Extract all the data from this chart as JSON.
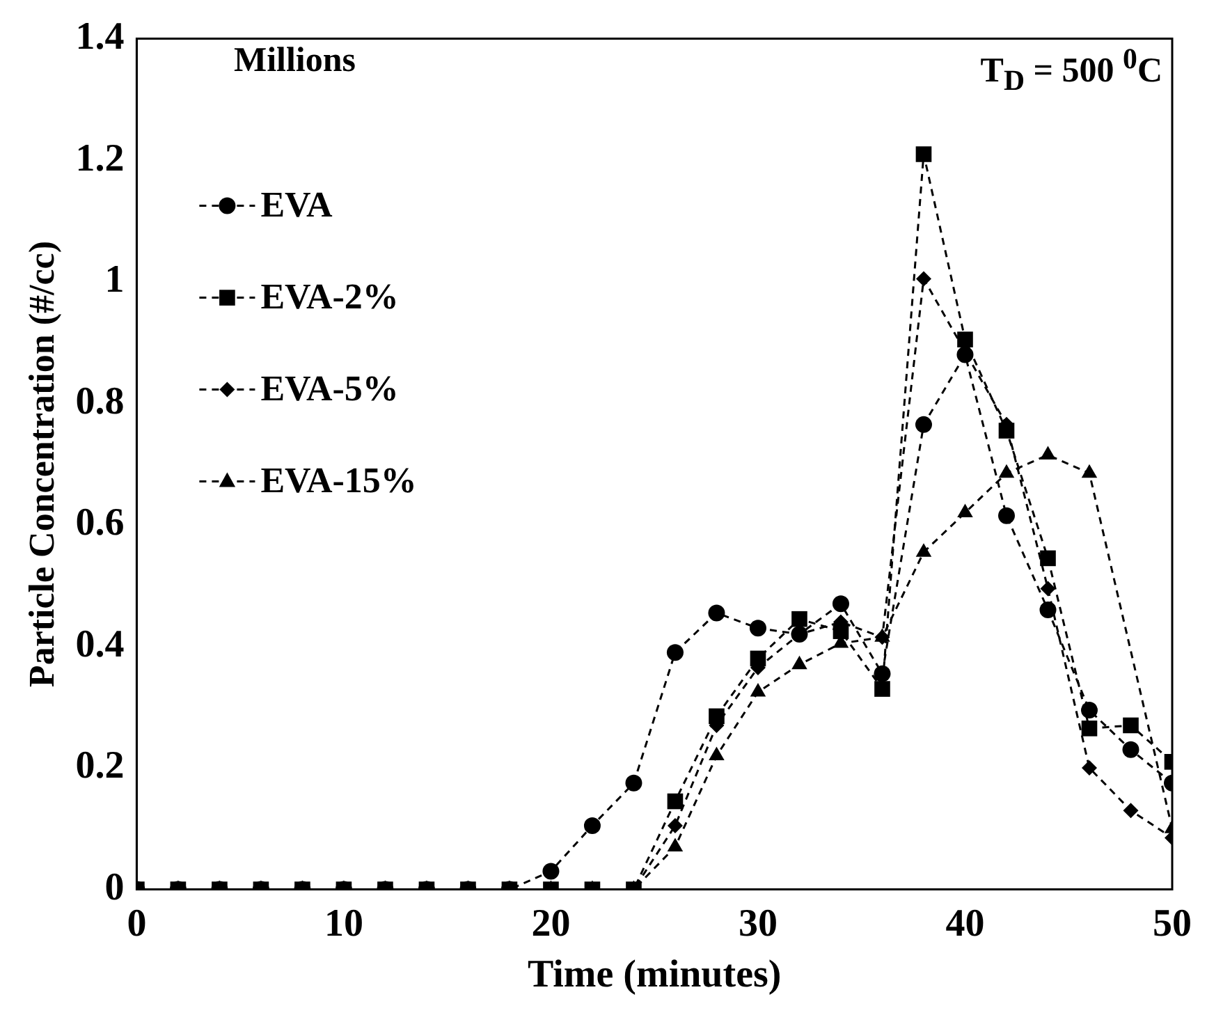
{
  "chart_data": {
    "type": "line",
    "xlabel": "Time (minutes)",
    "ylabel": "Particle Concentration (#/cc)",
    "annotations": [
      "Millions",
      "T$_{D}$ = 500 $^{0}$C"
    ],
    "xlim": [
      0,
      50
    ],
    "xticks": [
      0,
      10,
      20,
      30,
      40,
      50
    ],
    "ylim": [
      0,
      1.4
    ],
    "yticks": [
      0,
      0.2,
      0.4,
      0.6,
      0.8,
      1,
      1.2,
      1.4
    ],
    "grid": false,
    "legend": "top left",
    "line_style": "dashed",
    "series": [
      {
        "name": "EVA",
        "color": "#000000",
        "marker": "circle",
        "x": [
          0,
          2,
          4,
          6,
          8,
          10,
          12,
          14,
          16,
          18,
          20,
          22,
          24,
          26,
          28,
          30,
          32,
          34,
          36,
          38,
          40,
          42,
          44,
          46,
          48,
          50
        ],
        "values": [
          0,
          0,
          0,
          0,
          0,
          0,
          0,
          0,
          0,
          0,
          0.03,
          0.105,
          0.175,
          0.39,
          0.455,
          0.43,
          0.42,
          0.47,
          0.355,
          0.765,
          0.88,
          0.615,
          0.46,
          0.295,
          0.23,
          0.175
        ]
      },
      {
        "name": "EVA-2%",
        "color": "#000000",
        "marker": "square",
        "x": [
          0,
          2,
          4,
          6,
          8,
          10,
          12,
          14,
          16,
          18,
          20,
          22,
          24,
          26,
          28,
          30,
          32,
          34,
          36,
          38,
          40,
          42,
          44,
          46,
          48,
          50
        ],
        "values": [
          0,
          0,
          0,
          0,
          0,
          0,
          0,
          0,
          0,
          0,
          0,
          0,
          0,
          0.145,
          0.285,
          0.38,
          0.445,
          0.425,
          0.33,
          1.21,
          0.905,
          0.755,
          0.545,
          0.265,
          0.27,
          0.21
        ]
      },
      {
        "name": "EVA-5%",
        "color": "#000000",
        "marker": "diamond",
        "x": [
          0,
          2,
          4,
          6,
          8,
          10,
          12,
          14,
          16,
          18,
          20,
          22,
          24,
          26,
          28,
          30,
          32,
          34,
          36,
          38,
          40,
          42,
          44,
          46,
          48,
          50
        ],
        "values": [
          0,
          0,
          0,
          0,
          0,
          0,
          0,
          0,
          0,
          0,
          0,
          0,
          0,
          0.105,
          0.27,
          0.365,
          0.42,
          0.44,
          0.415,
          1.005,
          0.885,
          0.765,
          0.495,
          0.2,
          0.13,
          0.085
        ]
      },
      {
        "name": "EVA-15%",
        "color": "#000000",
        "marker": "triangle",
        "x": [
          0,
          2,
          4,
          6,
          8,
          10,
          12,
          14,
          16,
          18,
          20,
          22,
          24,
          26,
          28,
          30,
          32,
          34,
          36,
          38,
          40,
          42,
          44,
          46,
          50
        ],
        "values": [
          0,
          0,
          0,
          0,
          0,
          0,
          0,
          0,
          0,
          0,
          0,
          0,
          0,
          0.07,
          0.22,
          0.325,
          0.37,
          0.405,
          0.415,
          0.555,
          0.62,
          0.685,
          0.715,
          0.685,
          0.1
        ]
      }
    ]
  }
}
